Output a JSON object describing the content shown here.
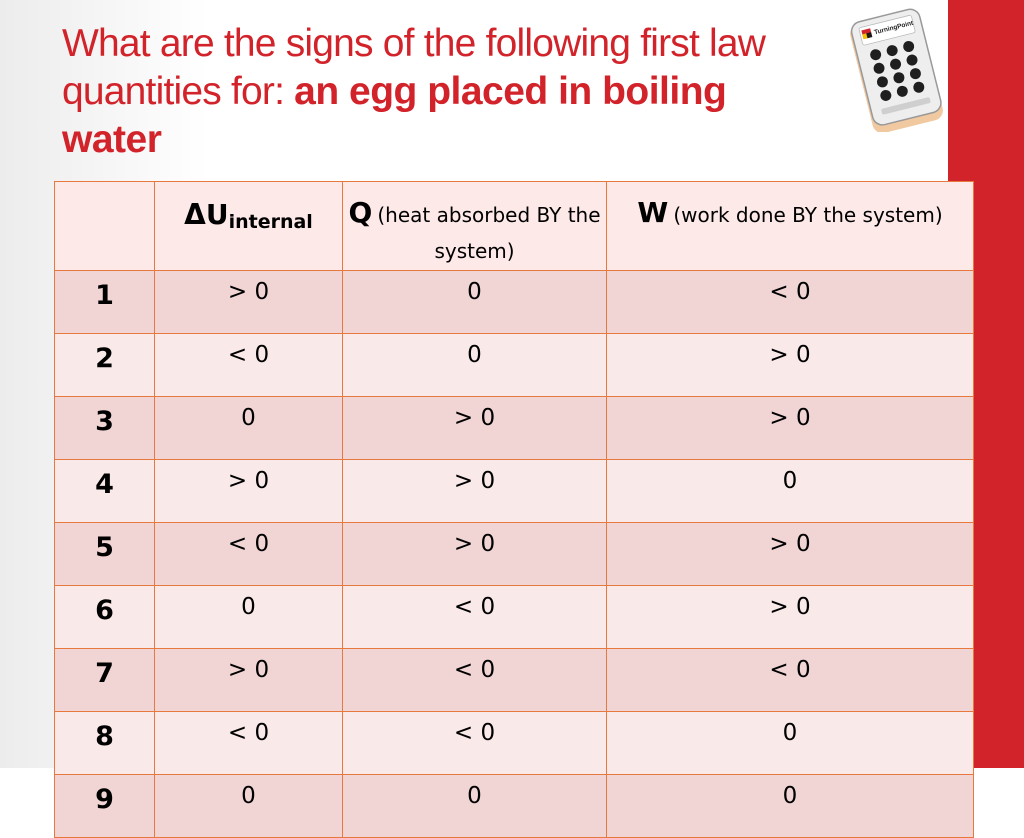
{
  "title": {
    "line_plain": "What are the signs of the following first law quantities for: ",
    "line_bold": "an egg placed in boiling water"
  },
  "clicker": {
    "brand": "TurningPoint",
    "icon": "clicker-remote-icon"
  },
  "table": {
    "headers": {
      "corner": "",
      "col1_symbol": "ΔU",
      "col1_sub": "internal",
      "col2_symbol": "Q",
      "col2_desc": "(heat absorbed BY the system)",
      "col3_symbol": "W",
      "col3_desc": "(work done BY the system)"
    },
    "rows": [
      {
        "num": "1",
        "du": "> 0",
        "q": "0",
        "w": "< 0"
      },
      {
        "num": "2",
        "du": "< 0",
        "q": "0",
        "w": "> 0"
      },
      {
        "num": "3",
        "du": "0",
        "q": "> 0",
        "w": "> 0"
      },
      {
        "num": "4",
        "du": "> 0",
        "q": "> 0",
        "w": "0"
      },
      {
        "num": "5",
        "du": "< 0",
        "q": "> 0",
        "w": "> 0"
      },
      {
        "num": "6",
        "du": "0",
        "q": "< 0",
        "w": "> 0"
      },
      {
        "num": "7",
        "du": "> 0",
        "q": "< 0",
        "w": "< 0"
      },
      {
        "num": "8",
        "du": "< 0",
        "q": "< 0",
        "w": "0"
      },
      {
        "num": "9",
        "du": "0",
        "q": "0",
        "w": "0"
      }
    ]
  },
  "colors": {
    "accent_red": "#d2232a",
    "table_border": "#e8793e",
    "row_dark": "#f1d4d4",
    "row_light": "#fae9e9"
  }
}
